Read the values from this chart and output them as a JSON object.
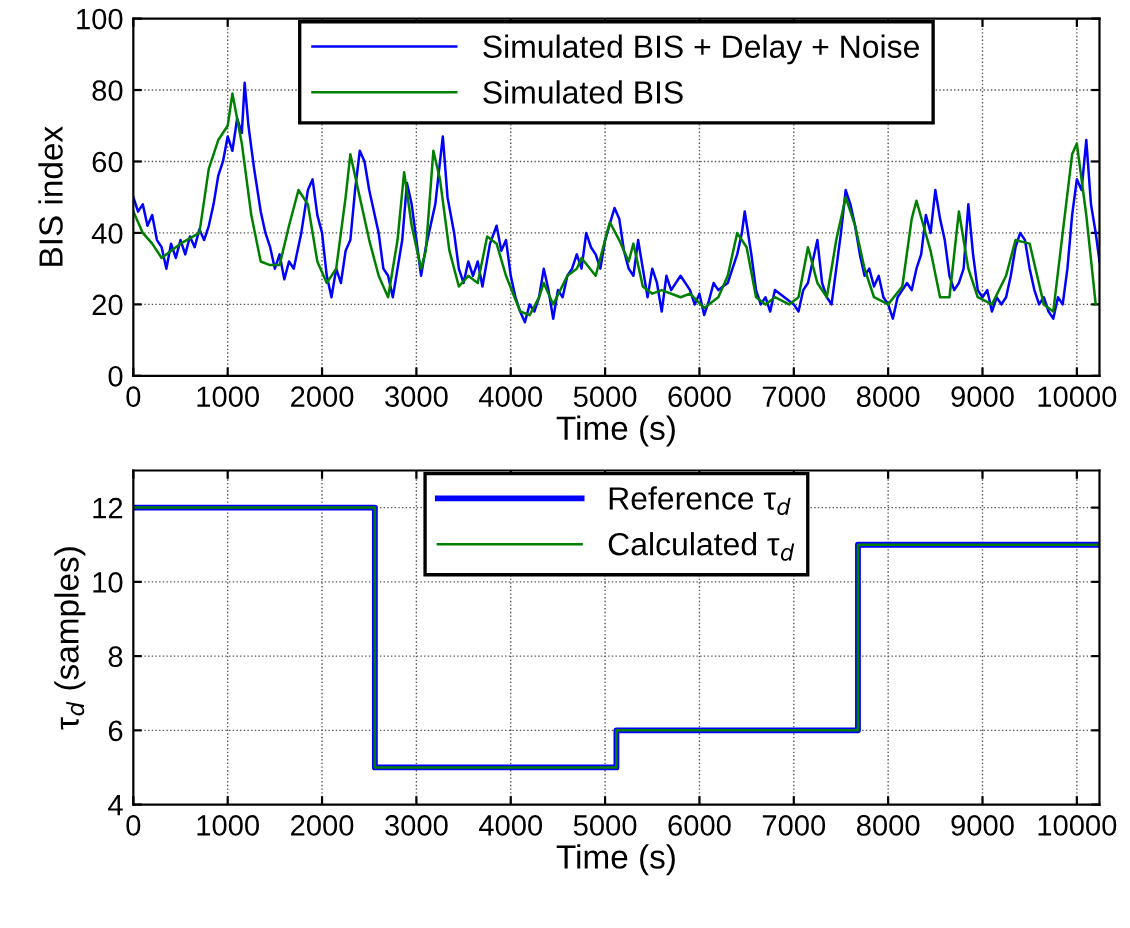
{
  "chart_data": [
    {
      "type": "line",
      "xlabel": "Time (s)",
      "ylabel": "BIS index",
      "xlim": [
        0,
        10240
      ],
      "xticks": [
        0,
        1000,
        2000,
        3000,
        4000,
        5000,
        6000,
        7000,
        8000,
        9000,
        10000
      ],
      "ylim": [
        0,
        100
      ],
      "yticks": [
        0,
        20,
        40,
        60,
        80,
        100
      ],
      "grid": true,
      "legend": "top",
      "line_style": "solid",
      "marker": "none",
      "series": [
        {
          "name": "Simulated BIS + Delay + Noise",
          "color": "#0000ff",
          "x": [
            0,
            50,
            100,
            150,
            200,
            250,
            300,
            350,
            400,
            450,
            500,
            550,
            600,
            650,
            700,
            750,
            800,
            850,
            900,
            950,
            1000,
            1050,
            1100,
            1150,
            1180,
            1220,
            1280,
            1350,
            1400,
            1450,
            1500,
            1550,
            1600,
            1650,
            1700,
            1780,
            1850,
            1900,
            1950,
            2000,
            2050,
            2100,
            2150,
            2200,
            2250,
            2300,
            2350,
            2400,
            2450,
            2500,
            2550,
            2600,
            2650,
            2700,
            2750,
            2800,
            2850,
            2900,
            2950,
            3000,
            3050,
            3100,
            3200,
            3280,
            3330,
            3400,
            3450,
            3500,
            3550,
            3600,
            3650,
            3700,
            3780,
            3850,
            3900,
            3950,
            4000,
            4050,
            4100,
            4150,
            4200,
            4250,
            4300,
            4350,
            4400,
            4450,
            4500,
            4550,
            4600,
            4650,
            4700,
            4750,
            4800,
            4850,
            4900,
            4950,
            5000,
            5100,
            5150,
            5200,
            5250,
            5300,
            5350,
            5400,
            5450,
            5500,
            5550,
            5600,
            5650,
            5700,
            5800,
            5900,
            5950,
            6000,
            6050,
            6100,
            6150,
            6200,
            6300,
            6400,
            6450,
            6480,
            6550,
            6600,
            6650,
            6700,
            6750,
            6800,
            6900,
            7000,
            7050,
            7100,
            7150,
            7200,
            7250,
            7300,
            7350,
            7400,
            7450,
            7500,
            7550,
            7600,
            7650,
            7700,
            7750,
            7800,
            7850,
            7900,
            7950,
            8000,
            8050,
            8100,
            8150,
            8200,
            8250,
            8300,
            8350,
            8400,
            8450,
            8500,
            8550,
            8600,
            8650,
            8700,
            8750,
            8800,
            8850,
            8900,
            8950,
            9000,
            9050,
            9100,
            9150,
            9200,
            9250,
            9300,
            9350,
            9400,
            9450,
            9500,
            9550,
            9600,
            9650,
            9700,
            9750,
            9800,
            9850,
            9900,
            9950,
            10000,
            10050,
            10100,
            10150,
            10200,
            10240
          ],
          "values": [
            50,
            46,
            48,
            42,
            45,
            38,
            36,
            30,
            37,
            33,
            38,
            34,
            39,
            36,
            41,
            38,
            42,
            48,
            56,
            60,
            67,
            63,
            72,
            68,
            82,
            70,
            58,
            46,
            40,
            36,
            30,
            34,
            27,
            32,
            30,
            40,
            52,
            55,
            45,
            40,
            28,
            22,
            30,
            26,
            35,
            38,
            52,
            63,
            60,
            52,
            46,
            40,
            30,
            28,
            22,
            30,
            38,
            54,
            48,
            38,
            28,
            36,
            48,
            67,
            50,
            40,
            30,
            26,
            32,
            28,
            32,
            25,
            37,
            42,
            35,
            38,
            28,
            22,
            18,
            15,
            20,
            18,
            22,
            30,
            24,
            16,
            24,
            22,
            28,
            30,
            34,
            30,
            40,
            36,
            34,
            30,
            38,
            47,
            44,
            35,
            30,
            28,
            38,
            30,
            22,
            30,
            26,
            18,
            28,
            24,
            28,
            24,
            20,
            23,
            17,
            21,
            26,
            24,
            26,
            34,
            40,
            46,
            34,
            24,
            20,
            22,
            18,
            24,
            22,
            20,
            18,
            24,
            26,
            32,
            38,
            26,
            22,
            20,
            30,
            40,
            52,
            48,
            42,
            34,
            28,
            30,
            25,
            28,
            22,
            20,
            16,
            22,
            24,
            26,
            24,
            30,
            34,
            45,
            40,
            52,
            44,
            38,
            28,
            24,
            26,
            30,
            48,
            34,
            24,
            22,
            24,
            18,
            22,
            20,
            22,
            28,
            36,
            40,
            38,
            30,
            24,
            20,
            22,
            18,
            16,
            22,
            20,
            30,
            45,
            55,
            52,
            66,
            48,
            40,
            32
          ]
        },
        {
          "name": "Simulated BIS",
          "color": "#008000",
          "x": [
            0,
            100,
            200,
            300,
            500,
            700,
            800,
            900,
            1000,
            1050,
            1150,
            1250,
            1350,
            1450,
            1550,
            1650,
            1750,
            1850,
            1950,
            2050,
            2150,
            2250,
            2300,
            2400,
            2500,
            2600,
            2700,
            2800,
            2870,
            2950,
            3050,
            3100,
            3180,
            3250,
            3350,
            3450,
            3550,
            3650,
            3750,
            3850,
            3950,
            4100,
            4200,
            4300,
            4350,
            4450,
            4600,
            4700,
            4750,
            4900,
            5050,
            5150,
            5250,
            5300,
            5400,
            5500,
            5600,
            5800,
            5900,
            6050,
            6200,
            6300,
            6400,
            6500,
            6600,
            6700,
            6800,
            6950,
            7050,
            7150,
            7250,
            7350,
            7450,
            7550,
            7650,
            7750,
            7850,
            8000,
            8150,
            8250,
            8300,
            8450,
            8550,
            8650,
            8750,
            8850,
            8950,
            9100,
            9250,
            9350,
            9500,
            9650,
            9750,
            9850,
            9950,
            10000,
            10100,
            10200
          ],
          "values": [
            46,
            40,
            37,
            33,
            37,
            40,
            58,
            66,
            70,
            79,
            65,
            45,
            32,
            31,
            31,
            42,
            52,
            48,
            32,
            26,
            30,
            50,
            62,
            50,
            38,
            28,
            22,
            38,
            57,
            42,
            30,
            35,
            63,
            55,
            35,
            25,
            28,
            26,
            39,
            37,
            28,
            18,
            17,
            22,
            26,
            20,
            28,
            30,
            33,
            28,
            43,
            38,
            32,
            37,
            25,
            23,
            24,
            22,
            23,
            19,
            22,
            28,
            40,
            36,
            22,
            20,
            22,
            20,
            22,
            36,
            26,
            22,
            38,
            50,
            42,
            30,
            22,
            20,
            25,
            44,
            49,
            35,
            22,
            22,
            46,
            30,
            22,
            20,
            28,
            38,
            37,
            20,
            18,
            40,
            62,
            65,
            45,
            20
          ]
        }
      ]
    },
    {
      "type": "step",
      "xlabel": "Time (s)",
      "ylabel": "τ$_{d}$ (samples)",
      "xlim": [
        0,
        10240
      ],
      "xticks": [
        0,
        1000,
        2000,
        3000,
        4000,
        5000,
        6000,
        7000,
        8000,
        9000,
        10000
      ],
      "ylim": [
        4,
        13
      ],
      "yticks": [
        4,
        6,
        8,
        10,
        12
      ],
      "grid": true,
      "legend": "top",
      "line_style": "solid",
      "marker": "none",
      "series": [
        {
          "name": "Reference τ$_{d}$",
          "color": "#0000ff",
          "x": [
            0,
            2560,
            5120,
            7680,
            10240
          ],
          "values": [
            12,
            5,
            6,
            11,
            11
          ]
        },
        {
          "name": "Calculated τ$_{d}$",
          "color": "#008000",
          "x": [
            0,
            2560,
            5120,
            7680,
            10240
          ],
          "values": [
            12,
            5,
            6,
            11,
            11
          ]
        }
      ]
    }
  ]
}
